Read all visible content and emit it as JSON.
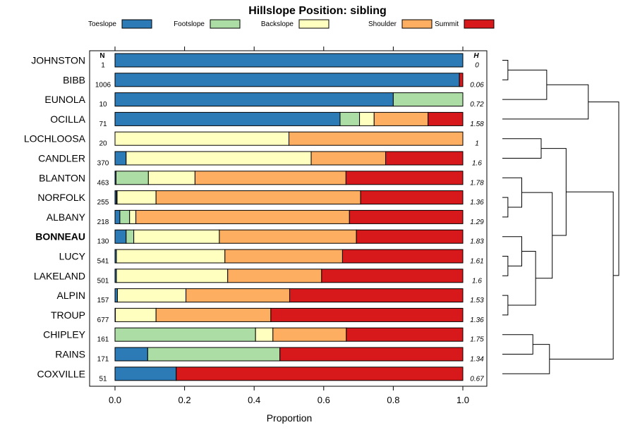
{
  "chart_data": {
    "type": "bar",
    "orientation": "horizontal-stacked",
    "title": "Hillslope Position: sibling",
    "xlabel": "Proportion",
    "xlim": [
      0,
      1
    ],
    "x_ticks": [
      "0.0",
      "0.2",
      "0.4",
      "0.6",
      "0.8",
      "1.0"
    ],
    "n_header": "N",
    "h_header": "H",
    "highlight": "BONNEAU",
    "series": [
      {
        "name": "Toeslope",
        "color": "#2c7bb6"
      },
      {
        "name": "Footslope",
        "color": "#abdda4"
      },
      {
        "name": "Backslope",
        "color": "#ffffbf"
      },
      {
        "name": "Shoulder",
        "color": "#fdae61"
      },
      {
        "name": "Summit",
        "color": "#d7191c"
      }
    ],
    "rows": [
      {
        "name": "JOHNSTON",
        "n": "1",
        "h": "0",
        "values": [
          1.0,
          0,
          0,
          0,
          0
        ]
      },
      {
        "name": "BIBB",
        "n": "1006",
        "h": "0.06",
        "values": [
          0.99,
          0,
          0,
          0,
          0.01
        ]
      },
      {
        "name": "EUNOLA",
        "n": "10",
        "h": "0.72",
        "values": [
          0.8,
          0.2,
          0,
          0,
          0
        ]
      },
      {
        "name": "OCILLA",
        "n": "71",
        "h": "1.58",
        "values": [
          0.647,
          0.056,
          0.042,
          0.155,
          0.1
        ]
      },
      {
        "name": "LOCHLOOSA",
        "n": "20",
        "h": "1",
        "values": [
          0,
          0,
          0.5,
          0.5,
          0
        ]
      },
      {
        "name": "CANDLER",
        "n": "370",
        "h": "1.6",
        "values": [
          0.032,
          0,
          0.532,
          0.214,
          0.222
        ]
      },
      {
        "name": "BLANTON",
        "n": "463",
        "h": "1.78",
        "values": [
          0.003,
          0.093,
          0.134,
          0.434,
          0.336
        ]
      },
      {
        "name": "NORFOLK",
        "n": "255",
        "h": "1.36",
        "values": [
          0.004,
          0.002,
          0.112,
          0.588,
          0.294
        ]
      },
      {
        "name": "ALBANY",
        "n": "218",
        "h": "1.29",
        "values": [
          0.014,
          0.028,
          0.018,
          0.614,
          0.326
        ]
      },
      {
        "name": "BONNEAU",
        "n": "130",
        "h": "1.83",
        "values": [
          0.032,
          0.022,
          0.246,
          0.394,
          0.306
        ]
      },
      {
        "name": "LUCY",
        "n": "541",
        "h": "1.61",
        "values": [
          0.004,
          0,
          0.312,
          0.338,
          0.346
        ]
      },
      {
        "name": "LAKELAND",
        "n": "501",
        "h": "1.6",
        "values": [
          0.004,
          0,
          0.32,
          0.27,
          0.406
        ]
      },
      {
        "name": "ALPIN",
        "n": "157",
        "h": "1.53",
        "values": [
          0.007,
          0,
          0.197,
          0.298,
          0.498
        ]
      },
      {
        "name": "TROUP",
        "n": "677",
        "h": "1.36",
        "values": [
          0.001,
          0,
          0.117,
          0.33,
          0.552
        ]
      },
      {
        "name": "CHIPLEY",
        "n": "161",
        "h": "1.75",
        "values": [
          0,
          0.404,
          0.05,
          0.211,
          0.335
        ]
      },
      {
        "name": "RAINS",
        "n": "171",
        "h": "1.34",
        "values": [
          0.094,
          0.38,
          0,
          0,
          0.526
        ]
      },
      {
        "name": "COXVILLE",
        "n": "51",
        "h": "0.67",
        "values": [
          0.176,
          0,
          0,
          0,
          0.824
        ]
      }
    ],
    "dendrogram": {
      "merges": [
        [
          -1,
          -2,
          0.02
        ],
        [
          1,
          -3,
          0.16
        ],
        [
          2,
          -4,
          0.31
        ],
        [
          -5,
          -6,
          0.14
        ],
        [
          -8,
          -9,
          0.02
        ],
        [
          -7,
          5,
          0.07
        ],
        [
          -11,
          -12,
          0.02
        ],
        [
          -10,
          7,
          0.07
        ],
        [
          -13,
          -14,
          0.02
        ],
        [
          8,
          9,
          0.12
        ],
        [
          6,
          10,
          0.18
        ],
        [
          4,
          11,
          0.23
        ],
        [
          -15,
          -16,
          0.11
        ],
        [
          13,
          -17,
          0.17
        ],
        [
          12,
          14,
          0.4
        ],
        [
          3,
          15,
          0.42
        ]
      ]
    }
  }
}
